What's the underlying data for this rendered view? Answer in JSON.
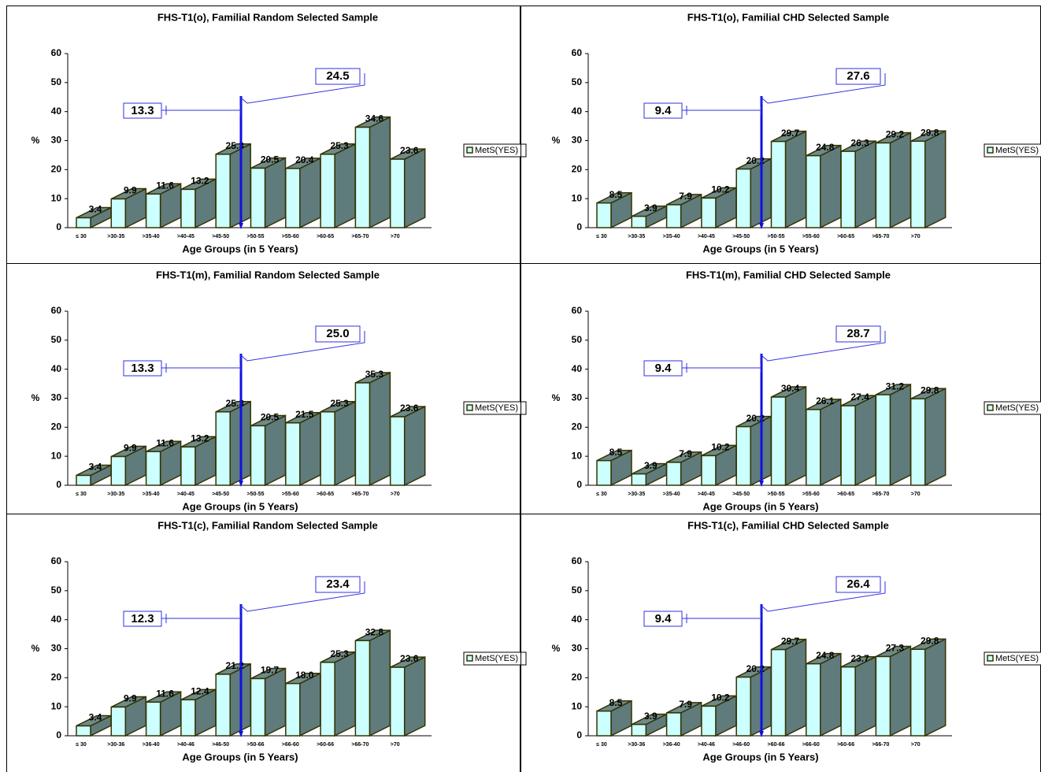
{
  "chart_data": [
    {
      "type": "bar",
      "title": "FHS-T1(o), Familial Random Selected Sample",
      "xlabel": "Age Groups (in 5 Years)",
      "ylabel": "%",
      "categories": [
        "≤ 30",
        ">30-35",
        ">35-40",
        ">40-45",
        ">45-50",
        ">50-55",
        ">55-60",
        ">60-65",
        ">65-70",
        ">70"
      ],
      "series": [
        {
          "name": "MetS(YES)",
          "color": "#ccffff",
          "values": [
            3.4,
            9.9,
            11.6,
            13.2,
            25.3,
            20.5,
            20.4,
            25.3,
            34.6,
            23.6
          ]
        }
      ],
      "ylim": [
        0,
        60
      ],
      "yticks": [
        0,
        10,
        20,
        30,
        40,
        50,
        60
      ],
      "annotations": [
        "13.3",
        "24.5"
      ]
    },
    {
      "type": "bar",
      "title": "FHS-T1(o), Familial CHD Selected Sample",
      "xlabel": "Age Groups (in 5 Years)",
      "ylabel": "%",
      "categories": [
        "≤ 30",
        ">30-35",
        ">35-40",
        ">40-45",
        ">45-50",
        ">50-55",
        ">55-60",
        ">60-65",
        ">65-70",
        ">70"
      ],
      "series": [
        {
          "name": "MetS(YES)",
          "color": "#ccffff",
          "values": [
            8.5,
            3.9,
            7.9,
            10.2,
            20.2,
            29.7,
            24.8,
            26.3,
            29.2,
            29.8
          ]
        }
      ],
      "ylim": [
        0,
        60
      ],
      "yticks": [
        0,
        10,
        20,
        30,
        40,
        50,
        60
      ],
      "annotations": [
        "9.4",
        "27.6"
      ]
    },
    {
      "type": "bar",
      "title": "FHS-T1(m), Familial Random Selected Sample",
      "xlabel": "Age Groups (in 5 Years)",
      "ylabel": "%",
      "categories": [
        "≤ 30",
        ">30-35",
        ">35-40",
        ">40-45",
        ">45-50",
        ">50-55",
        ">55-60",
        ">60-65",
        ">65-70",
        ">70"
      ],
      "series": [
        {
          "name": "MetS(YES)",
          "color": "#ccffff",
          "values": [
            3.4,
            9.9,
            11.6,
            13.2,
            25.3,
            20.5,
            21.5,
            25.3,
            35.3,
            23.6
          ]
        }
      ],
      "ylim": [
        0,
        60
      ],
      "yticks": [
        0,
        10,
        20,
        30,
        40,
        50,
        60
      ],
      "annotations": [
        "13.3",
        "25.0"
      ]
    },
    {
      "type": "bar",
      "title": "FHS-T1(m), Familial CHD Selected Sample",
      "xlabel": "Age Groups (in 5 Years)",
      "ylabel": "%",
      "categories": [
        "≤ 30",
        ">30-35",
        ">35-40",
        ">40-45",
        ">45-50",
        ">50-55",
        ">55-60",
        ">60-65",
        ">65-70",
        ">70"
      ],
      "series": [
        {
          "name": "MetS(YES)",
          "color": "#ccffff",
          "values": [
            8.5,
            3.9,
            7.9,
            10.2,
            20.2,
            30.4,
            26.1,
            27.4,
            31.2,
            29.8
          ]
        }
      ],
      "ylim": [
        0,
        60
      ],
      "yticks": [
        0,
        10,
        20,
        30,
        40,
        50,
        60
      ],
      "annotations": [
        "9.4",
        "28.7"
      ]
    },
    {
      "type": "bar",
      "title": "FHS-T1(c), Familial Random Selected Sample",
      "xlabel": "Age Groups (in 5 Years)",
      "ylabel": "%",
      "categories": [
        "≤ 30",
        ">30-36",
        ">36-40",
        ">40-46",
        ">46-50",
        ">50-66",
        ">66-60",
        ">60-66",
        ">66-70",
        ">70"
      ],
      "series": [
        {
          "name": "MetS(YES)",
          "color": "#ccffff",
          "values": [
            3.4,
            9.9,
            11.6,
            12.4,
            21.2,
            19.7,
            18.0,
            25.3,
            32.8,
            23.6
          ],
          "value_labels": [
            "3.4",
            "9.9",
            "11.6",
            "12.4",
            "21.2",
            "19.7",
            "18.0",
            "25.3",
            "32.8",
            "23.6"
          ]
        }
      ],
      "ylim": [
        0,
        60
      ],
      "yticks": [
        0,
        10,
        20,
        30,
        40,
        50,
        60
      ],
      "annotations": [
        "12.3",
        "23.4"
      ]
    },
    {
      "type": "bar",
      "title": "FHS-T1(c), Familial CHD Selected Sample",
      "xlabel": "Age Groups (in 5 Years)",
      "ylabel": "%",
      "categories": [
        "≤ 30",
        ">30-36",
        ">36-40",
        ">40-46",
        ">46-60",
        ">60-66",
        ">66-60",
        ">60-66",
        ">66-70",
        ">70"
      ],
      "series": [
        {
          "name": "MetS(YES)",
          "color": "#ccffff",
          "values": [
            8.5,
            3.9,
            7.9,
            10.2,
            20.2,
            29.7,
            24.8,
            23.7,
            27.3,
            29.8
          ]
        }
      ],
      "ylim": [
        0,
        60
      ],
      "yticks": [
        0,
        10,
        20,
        30,
        40,
        50,
        60
      ],
      "annotations": [
        "9.4",
        "26.4"
      ]
    }
  ]
}
